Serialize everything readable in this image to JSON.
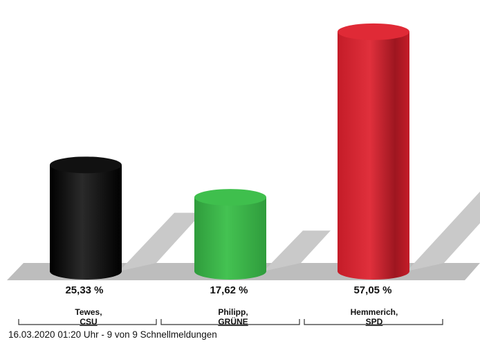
{
  "chart_data": {
    "type": "bar",
    "style": "3d-cylinder",
    "categories": [
      "Tewes, CSU",
      "Philipp, GRÜNE",
      "Hemmerich, SPD"
    ],
    "candidates": [
      {
        "name": "Tewes,",
        "party": "CSU",
        "value": 25.33,
        "value_label": "25,33 %",
        "color": "#0a0a0a"
      },
      {
        "name": "Philipp,",
        "party": "GRÜNE",
        "value": 17.62,
        "value_label": "17,62 %",
        "color": "#3cb54a"
      },
      {
        "name": "Hemmerich,",
        "party": "SPD",
        "value": 57.05,
        "value_label": "57,05 %",
        "color": "#d42330"
      }
    ],
    "values": [
      25.33,
      17.62,
      57.05
    ],
    "ylim": [
      0,
      60
    ],
    "grid": false,
    "title": "",
    "xlabel": "",
    "ylabel": ""
  },
  "footer": {
    "text": "16.03.2020 01:20 Uhr - 9 von 9 Schnellmeldungen"
  }
}
